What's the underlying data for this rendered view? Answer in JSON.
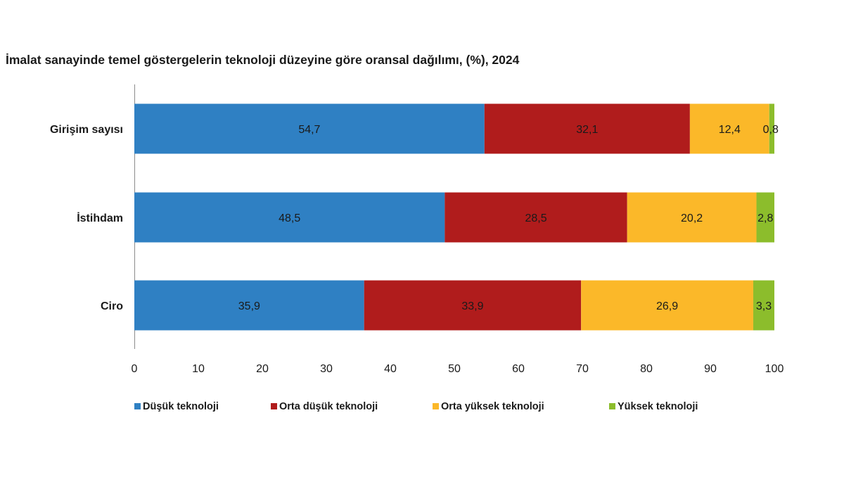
{
  "chart_data": {
    "type": "bar",
    "orientation": "horizontal",
    "stacked": true,
    "title": "İmalat sanayinde temel göstergelerin teknoloji düzeyine göre oransal dağılımı, (%), 2024",
    "categories": [
      "Girişim sayısı",
      "İstihdam",
      "Ciro"
    ],
    "series": [
      {
        "name": "Düşük teknoloji",
        "color": "#2f80c3",
        "values": [
          54.7,
          48.5,
          35.9
        ],
        "labels": [
          "54,7",
          "48,5",
          "35,9"
        ]
      },
      {
        "name": "Orta düşük teknoloji",
        "color": "#b01c1c",
        "values": [
          32.1,
          28.5,
          33.9
        ],
        "labels": [
          "32,1",
          "28,5",
          "33,9"
        ]
      },
      {
        "name": "Orta yüksek teknoloji",
        "color": "#fbb829",
        "values": [
          12.4,
          20.2,
          26.9
        ],
        "labels": [
          "12,4",
          "20,2",
          "26,9"
        ]
      },
      {
        "name": "Yüksek teknoloji",
        "color": "#8cbd2c",
        "values": [
          0.8,
          2.8,
          3.3
        ],
        "labels": [
          "0,8",
          "2,8",
          "3,3"
        ]
      }
    ],
    "xlim": [
      0,
      100
    ],
    "xticks": [
      "0",
      "10",
      "20",
      "30",
      "40",
      "50",
      "60",
      "70",
      "80",
      "90",
      "100"
    ],
    "grid": false,
    "legend_position": "bottom"
  }
}
